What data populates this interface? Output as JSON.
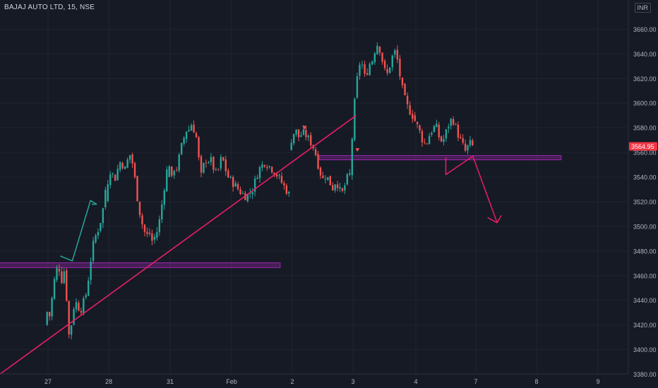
{
  "header": {
    "symbol": "BAJAJ AUTO LTD, 15, NSE",
    "currency": "INR"
  },
  "colors": {
    "background": "#161a25",
    "up": "#26a69a",
    "down": "#ef5350",
    "trendline": "#e91e63",
    "zone": "#9c27b0",
    "projection_up": "#26a69a",
    "projection_down": "#e91e63",
    "axis_text": "#b2b5be",
    "price_label_bg": "#f23645"
  },
  "chart_data": {
    "type": "candlestick",
    "title": "",
    "last_price": 3564.95,
    "last_price_label": "3564.95",
    "y_ticks": [
      3380,
      3400,
      3420,
      3440,
      3460,
      3480,
      3500,
      3520,
      3540,
      3560,
      3580,
      3600,
      3620,
      3640,
      3660
    ],
    "y_tick_labels": [
      "3380.00",
      "3400.00",
      "3420.00",
      "3440.00",
      "3460.00",
      "3480.00",
      "3500.00",
      "3520.00",
      "3540.00",
      "3560.00",
      "3580.00",
      "3600.00",
      "3620.00",
      "3640.00",
      "3660.00"
    ],
    "ylim": [
      3373,
      3673
    ],
    "x_ticks": [
      "27",
      "28",
      "31",
      "Feb",
      "2",
      "3",
      "4",
      "7",
      "8",
      "9"
    ],
    "sessions": [
      {
        "label": "27",
        "start": 3420,
        "points": [
          3420,
          3432,
          3426,
          3450,
          3462,
          3470,
          3455,
          3465,
          3440,
          3405,
          3428,
          3440,
          3435,
          3432,
          3438,
          3445,
          3460,
          3478,
          3490,
          3495,
          3502,
          3512,
          3530
        ]
      },
      {
        "label": "28",
        "start": 3520,
        "points": [
          3520,
          3540,
          3548,
          3536,
          3545,
          3552,
          3550,
          3545,
          3560,
          3555,
          3540,
          3522,
          3508,
          3498,
          3492,
          3495,
          3488,
          3492,
          3498,
          3512,
          3530,
          3545
        ]
      },
      {
        "label": "31",
        "start": 3540,
        "points": [
          3540,
          3552,
          3536,
          3548,
          3545,
          3552,
          3562,
          3568,
          3575,
          3580,
          3578,
          3584,
          3578,
          3572,
          3555,
          3540,
          3548,
          3555,
          3552,
          3556,
          3550,
          3545,
          3542,
          3548,
          3556,
          3552,
          3545,
          3540
        ]
      },
      {
        "label": "Feb",
        "start": 3540,
        "points": [
          3540,
          3534,
          3528,
          3524,
          3530,
          3546,
          3552,
          3548,
          3542,
          3534,
          3526
        ]
      },
      {
        "label": "2",
        "start": 3562,
        "points": [
          3562,
          3574,
          3578,
          3572,
          3576,
          3574,
          3570,
          3566,
          3558,
          3546,
          3538,
          3542,
          3536,
          3531,
          3538,
          3529,
          3527,
          3538,
          3542
        ]
      },
      {
        "label": "3",
        "start": 3542,
        "points": [
          3542,
          3576,
          3608,
          3626,
          3638,
          3620,
          3625,
          3632,
          3635,
          3645,
          3649,
          3640,
          3628,
          3622,
          3630,
          3638,
          3642,
          3632,
          3616,
          3606,
          3598,
          3594,
          3590
        ]
      },
      {
        "label": "4",
        "start": 3590,
        "points": [
          3590,
          3584,
          3578,
          3570,
          3566,
          3574,
          3579,
          3582,
          3572,
          3568,
          3576,
          3584,
          3588,
          3580,
          3572,
          3566,
          3560,
          3568,
          3565
        ]
      }
    ],
    "trendline": {
      "from": [
        -0.9,
        3376
      ],
      "to": [
        5.05,
        3590
      ]
    },
    "zones": [
      {
        "from": [
          -0.8,
          3470.5
        ],
        "to": [
          3.8,
          3466.5
        ]
      },
      {
        "from": [
          4.45,
          3557.5
        ],
        "to": [
          8.4,
          3554
        ]
      }
    ],
    "projection_up": [
      [
        0.2,
        3476
      ],
      [
        0.4,
        3472
      ],
      [
        0.7,
        3521
      ],
      [
        0.8,
        3518
      ],
      [
        0.72,
        3518
      ]
    ],
    "projection_down": [
      [
        6.5,
        3556
      ],
      [
        6.5,
        3542
      ],
      [
        6.95,
        3557
      ],
      [
        7.35,
        3503
      ],
      [
        7.2,
        3507
      ],
      [
        7.35,
        3503
      ],
      [
        7.42,
        3509
      ]
    ],
    "markers": [
      {
        "x": 4.2,
        "y": 3578
      },
      {
        "x": 5.07,
        "y": 3560
      }
    ]
  }
}
